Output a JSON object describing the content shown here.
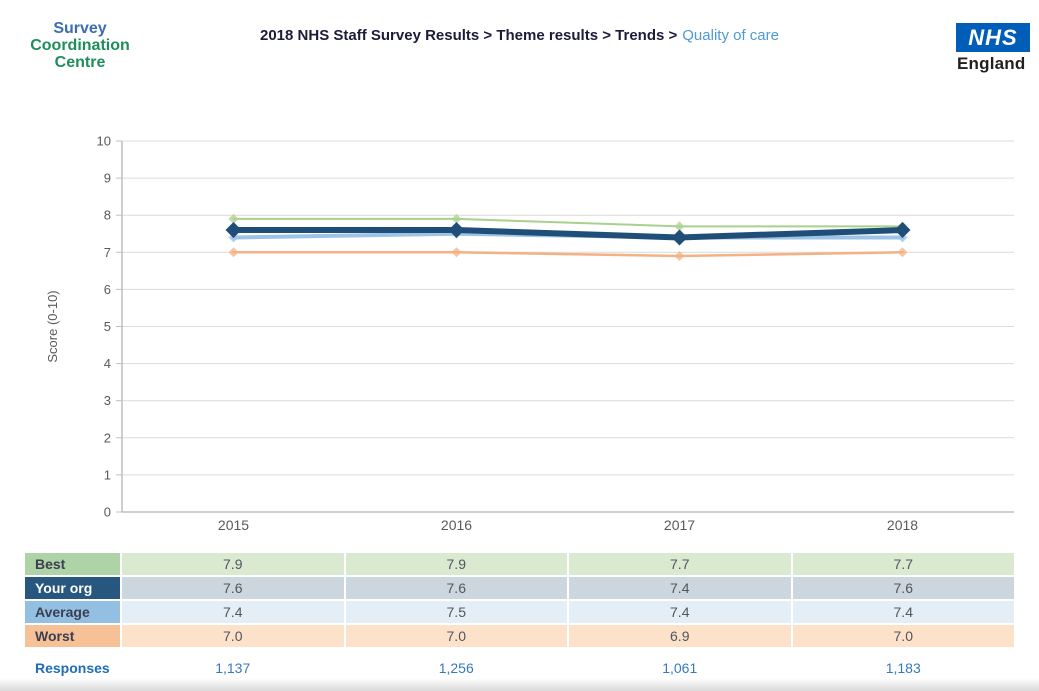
{
  "header": {
    "logo": {
      "line1": "Survey",
      "line2": "Coordination",
      "line3": "Centre"
    },
    "breadcrumb": {
      "path": "2018 NHS Staff Survey Results > Theme results > Trends >",
      "current": "Quality of care"
    },
    "nhs_logo": {
      "acronym": "NHS",
      "org": "England"
    }
  },
  "chart_data": {
    "type": "line",
    "title": "",
    "categories": [
      "2015",
      "2016",
      "2017",
      "2018"
    ],
    "series": [
      {
        "name": "Best",
        "values": [
          7.9,
          7.9,
          7.7,
          7.7
        ],
        "color": "#a9d18e",
        "width": 2,
        "marker": 5
      },
      {
        "name": "Worst",
        "values": [
          7.0,
          7.0,
          6.9,
          7.0
        ],
        "color": "#f4b183",
        "width": 2.5,
        "marker": 5
      },
      {
        "name": "Average",
        "values": [
          7.4,
          7.5,
          7.4,
          7.4
        ],
        "color": "#9dc3e6",
        "width": 4,
        "marker": 5
      },
      {
        "name": "Your org",
        "values": [
          7.6,
          7.6,
          7.4,
          7.6
        ],
        "color": "#1f4e79",
        "width": 6,
        "marker": 8
      }
    ],
    "xlabel": "",
    "ylabel": "Score (0-10)",
    "ylim": [
      0,
      10
    ],
    "ytick_step": 1,
    "grid": true,
    "legend_position": "table-below-chart"
  },
  "table": {
    "columns": [
      "2015",
      "2016",
      "2017",
      "2018"
    ],
    "rows": [
      {
        "label": "Best",
        "values": [
          "7.9",
          "7.9",
          "7.7",
          "7.7"
        ],
        "label_color": "#aed3a6",
        "value_color": "#d9ead1"
      },
      {
        "label": "Your org",
        "values": [
          "7.6",
          "7.6",
          "7.4",
          "7.6"
        ],
        "label_color": "#27567f",
        "value_color": "#ccd6de"
      },
      {
        "label": "Average",
        "values": [
          "7.4",
          "7.5",
          "7.4",
          "7.4"
        ],
        "label_color": "#93c0e2",
        "value_color": "#e3eef7"
      },
      {
        "label": "Worst",
        "values": [
          "7.0",
          "7.0",
          "6.9",
          "7.0"
        ],
        "label_color": "#f7c197",
        "value_color": "#fbe2c9"
      }
    ],
    "responses": {
      "label": "Responses",
      "values": [
        "1,137",
        "1,256",
        "1,061",
        "1,183"
      ]
    }
  },
  "colors": {
    "nhs_blue": "#005EB8",
    "logo_blue": "#3c6db0",
    "logo_green": "#1e8e5a",
    "breadcrumb_dark": "#1c1c3a",
    "breadcrumb_link": "#4e9ad2",
    "axis_text": "#595959",
    "gridline": "#dcdcdc",
    "axis_line": "#bfbfbf",
    "responses_blue": "#1f6db8"
  }
}
